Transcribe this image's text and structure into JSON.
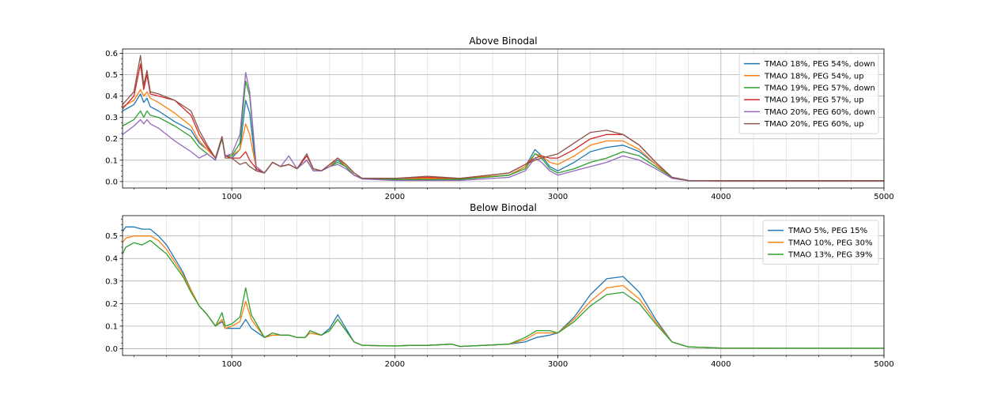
{
  "chart_data": [
    {
      "type": "line",
      "title": "Above Binodal",
      "xlabel": "",
      "ylabel": "",
      "xlim": [
        330,
        5000
      ],
      "ylim": [
        -0.03,
        0.62
      ],
      "xticks": [
        1000,
        2000,
        3000,
        4000,
        5000
      ],
      "yticks": [
        0.0,
        0.1,
        0.2,
        0.3,
        0.4,
        0.5,
        0.6
      ],
      "grid": true,
      "legend": "top-right",
      "series": [
        {
          "name": "TMAO 18%, PEG 54%, down",
          "color": "#1f77b4",
          "x": [
            330,
            400,
            440,
            460,
            480,
            500,
            550,
            650,
            750,
            800,
            850,
            900,
            940,
            960,
            1000,
            1050,
            1085,
            1110,
            1150,
            1200,
            1250,
            1300,
            1350,
            1400,
            1460,
            1500,
            1550,
            1600,
            1650,
            1700,
            1750,
            1800,
            2000,
            2200,
            2400,
            2700,
            2800,
            2860,
            2900,
            2950,
            3000,
            3100,
            3200,
            3300,
            3400,
            3500,
            3600,
            3700,
            3800,
            4000,
            4500,
            5000
          ],
          "y": [
            0.33,
            0.36,
            0.41,
            0.37,
            0.39,
            0.35,
            0.33,
            0.28,
            0.24,
            0.18,
            0.15,
            0.11,
            0.2,
            0.12,
            0.11,
            0.15,
            0.38,
            0.32,
            0.05,
            0.04,
            0.09,
            0.07,
            0.08,
            0.06,
            0.1,
            0.05,
            0.05,
            0.07,
            0.1,
            0.07,
            0.03,
            0.015,
            0.01,
            0.01,
            0.01,
            0.03,
            0.07,
            0.15,
            0.12,
            0.07,
            0.05,
            0.09,
            0.14,
            0.16,
            0.17,
            0.14,
            0.08,
            0.02,
            0.005,
            0.003,
            0.003,
            0.003
          ]
        },
        {
          "name": "TMAO 18%, PEG 54%, up",
          "color": "#ff7f0e",
          "x": [
            330,
            400,
            440,
            460,
            480,
            500,
            550,
            650,
            750,
            800,
            850,
            900,
            940,
            960,
            1000,
            1050,
            1085,
            1110,
            1150,
            1200,
            1250,
            1300,
            1350,
            1400,
            1460,
            1500,
            1550,
            1600,
            1650,
            1700,
            1750,
            1800,
            2000,
            2200,
            2400,
            2700,
            2800,
            2860,
            2900,
            2950,
            3000,
            3100,
            3200,
            3300,
            3400,
            3500,
            3600,
            3700,
            3800,
            4000,
            4500,
            5000
          ],
          "y": [
            0.35,
            0.38,
            0.43,
            0.4,
            0.42,
            0.39,
            0.37,
            0.32,
            0.26,
            0.19,
            0.15,
            0.11,
            0.2,
            0.12,
            0.12,
            0.15,
            0.27,
            0.22,
            0.06,
            0.04,
            0.09,
            0.07,
            0.08,
            0.06,
            0.1,
            0.05,
            0.05,
            0.07,
            0.11,
            0.07,
            0.03,
            0.015,
            0.01,
            0.015,
            0.015,
            0.03,
            0.07,
            0.13,
            0.12,
            0.09,
            0.08,
            0.12,
            0.17,
            0.19,
            0.19,
            0.15,
            0.08,
            0.02,
            0.005,
            0.003,
            0.003,
            0.003
          ]
        },
        {
          "name": "TMAO 19%, PEG 57%, down",
          "color": "#2ca02c",
          "x": [
            330,
            400,
            440,
            460,
            480,
            500,
            550,
            650,
            750,
            800,
            850,
            900,
            940,
            960,
            1000,
            1050,
            1085,
            1110,
            1150,
            1200,
            1250,
            1300,
            1350,
            1400,
            1460,
            1500,
            1550,
            1600,
            1650,
            1700,
            1750,
            1800,
            2000,
            2200,
            2400,
            2700,
            2800,
            2860,
            2900,
            2950,
            3000,
            3100,
            3200,
            3300,
            3400,
            3500,
            3600,
            3700,
            3800,
            4000,
            4500,
            5000
          ],
          "y": [
            0.26,
            0.29,
            0.33,
            0.3,
            0.33,
            0.31,
            0.3,
            0.26,
            0.21,
            0.16,
            0.13,
            0.1,
            0.2,
            0.12,
            0.12,
            0.18,
            0.47,
            0.4,
            0.06,
            0.04,
            0.09,
            0.07,
            0.08,
            0.06,
            0.1,
            0.05,
            0.05,
            0.07,
            0.09,
            0.07,
            0.03,
            0.015,
            0.01,
            0.01,
            0.01,
            0.03,
            0.06,
            0.13,
            0.11,
            0.06,
            0.04,
            0.06,
            0.09,
            0.11,
            0.14,
            0.12,
            0.07,
            0.02,
            0.005,
            0.003,
            0.003,
            0.003
          ]
        },
        {
          "name": "TMAO 19%, PEG 57%, up",
          "color": "#d62728",
          "x": [
            330,
            400,
            440,
            460,
            480,
            500,
            550,
            650,
            750,
            800,
            850,
            900,
            940,
            960,
            1000,
            1050,
            1085,
            1110,
            1150,
            1200,
            1250,
            1300,
            1350,
            1400,
            1460,
            1500,
            1550,
            1600,
            1650,
            1700,
            1750,
            1800,
            2000,
            2200,
            2400,
            2700,
            2800,
            2860,
            2900,
            2950,
            3000,
            3100,
            3200,
            3300,
            3400,
            3500,
            3600,
            3700,
            3800,
            4000,
            4500,
            5000
          ],
          "y": [
            0.34,
            0.4,
            0.55,
            0.43,
            0.5,
            0.41,
            0.4,
            0.38,
            0.31,
            0.22,
            0.16,
            0.11,
            0.21,
            0.12,
            0.11,
            0.11,
            0.14,
            0.1,
            0.06,
            0.04,
            0.09,
            0.07,
            0.08,
            0.06,
            0.12,
            0.06,
            0.05,
            0.08,
            0.11,
            0.08,
            0.04,
            0.015,
            0.015,
            0.02,
            0.015,
            0.04,
            0.08,
            0.11,
            0.12,
            0.11,
            0.11,
            0.15,
            0.2,
            0.22,
            0.22,
            0.17,
            0.09,
            0.02,
            0.005,
            0.004,
            0.004,
            0.004
          ]
        },
        {
          "name": "TMAO 20%, PEG 60%, down",
          "color": "#9467bd",
          "x": [
            330,
            400,
            440,
            460,
            480,
            500,
            550,
            650,
            750,
            800,
            850,
            900,
            940,
            960,
            1000,
            1050,
            1085,
            1110,
            1150,
            1200,
            1250,
            1300,
            1350,
            1400,
            1460,
            1500,
            1550,
            1600,
            1650,
            1700,
            1750,
            1800,
            2000,
            2200,
            2400,
            2700,
            2800,
            2860,
            2900,
            2950,
            3000,
            3100,
            3200,
            3300,
            3400,
            3500,
            3600,
            3700,
            3800,
            4000,
            4500,
            5000
          ],
          "y": [
            0.22,
            0.26,
            0.29,
            0.27,
            0.29,
            0.27,
            0.25,
            0.19,
            0.14,
            0.11,
            0.13,
            0.1,
            0.21,
            0.12,
            0.13,
            0.22,
            0.51,
            0.42,
            0.07,
            0.04,
            0.09,
            0.07,
            0.12,
            0.06,
            0.1,
            0.05,
            0.05,
            0.07,
            0.08,
            0.06,
            0.03,
            0.012,
            0.005,
            0.005,
            0.005,
            0.02,
            0.05,
            0.11,
            0.09,
            0.05,
            0.03,
            0.05,
            0.07,
            0.09,
            0.12,
            0.1,
            0.06,
            0.015,
            0.004,
            0.003,
            0.003,
            0.003
          ]
        },
        {
          "name": "TMAO 20%, PEG 60%, up",
          "color": "#8c564b",
          "x": [
            330,
            400,
            440,
            460,
            480,
            500,
            550,
            650,
            750,
            800,
            850,
            900,
            940,
            960,
            1000,
            1050,
            1085,
            1110,
            1150,
            1200,
            1250,
            1300,
            1350,
            1400,
            1460,
            1500,
            1550,
            1600,
            1650,
            1700,
            1750,
            1800,
            2000,
            2200,
            2400,
            2700,
            2800,
            2860,
            2900,
            2950,
            3000,
            3100,
            3200,
            3300,
            3400,
            3500,
            3600,
            3700,
            3800,
            4000,
            4500,
            5000
          ],
          "y": [
            0.36,
            0.42,
            0.59,
            0.45,
            0.52,
            0.42,
            0.41,
            0.38,
            0.33,
            0.24,
            0.17,
            0.11,
            0.21,
            0.11,
            0.11,
            0.08,
            0.09,
            0.07,
            0.05,
            0.04,
            0.09,
            0.07,
            0.08,
            0.06,
            0.13,
            0.06,
            0.05,
            0.08,
            0.11,
            0.08,
            0.04,
            0.015,
            0.015,
            0.025,
            0.015,
            0.04,
            0.08,
            0.1,
            0.11,
            0.12,
            0.13,
            0.18,
            0.23,
            0.24,
            0.22,
            0.17,
            0.09,
            0.02,
            0.005,
            0.004,
            0.004,
            0.004
          ]
        }
      ]
    },
    {
      "type": "line",
      "title": "Below Binodal",
      "xlabel": "",
      "ylabel": "",
      "xlim": [
        330,
        5000
      ],
      "ylim": [
        -0.03,
        0.59
      ],
      "xticks": [
        1000,
        2000,
        3000,
        4000,
        5000
      ],
      "yticks": [
        0.0,
        0.1,
        0.2,
        0.3,
        0.4,
        0.5
      ],
      "grid": true,
      "legend": "top-right",
      "series": [
        {
          "name": "TMAO 5%, PEG 15%",
          "color": "#1f77b4",
          "x": [
            330,
            350,
            400,
            450,
            500,
            550,
            600,
            700,
            750,
            800,
            850,
            900,
            940,
            960,
            1000,
            1050,
            1085,
            1120,
            1200,
            1250,
            1300,
            1350,
            1400,
            1450,
            1480,
            1550,
            1600,
            1650,
            1700,
            1750,
            1800,
            2000,
            2100,
            2200,
            2350,
            2400,
            2700,
            2800,
            2870,
            2950,
            3000,
            3100,
            3200,
            3300,
            3400,
            3500,
            3600,
            3700,
            3800,
            4000,
            4500,
            5000
          ],
          "y": [
            0.52,
            0.54,
            0.54,
            0.53,
            0.53,
            0.5,
            0.46,
            0.34,
            0.26,
            0.19,
            0.15,
            0.1,
            0.12,
            0.09,
            0.09,
            0.09,
            0.13,
            0.09,
            0.05,
            0.06,
            0.06,
            0.06,
            0.05,
            0.05,
            0.07,
            0.06,
            0.09,
            0.15,
            0.09,
            0.03,
            0.015,
            0.012,
            0.015,
            0.015,
            0.02,
            0.01,
            0.02,
            0.03,
            0.05,
            0.06,
            0.07,
            0.14,
            0.24,
            0.31,
            0.32,
            0.25,
            0.13,
            0.03,
            0.008,
            0.003,
            0.002,
            0.002
          ]
        },
        {
          "name": "TMAO 10%, PEG 30%",
          "color": "#ff7f0e",
          "x": [
            330,
            350,
            400,
            450,
            500,
            550,
            600,
            700,
            750,
            800,
            850,
            900,
            940,
            960,
            1000,
            1050,
            1085,
            1120,
            1200,
            1250,
            1300,
            1350,
            1400,
            1450,
            1480,
            1550,
            1600,
            1650,
            1700,
            1750,
            1800,
            2000,
            2100,
            2200,
            2350,
            2400,
            2700,
            2800,
            2870,
            2950,
            3000,
            3100,
            3200,
            3300,
            3400,
            3500,
            3600,
            3700,
            3800,
            4000,
            4500,
            5000
          ],
          "y": [
            0.47,
            0.49,
            0.5,
            0.5,
            0.5,
            0.48,
            0.44,
            0.33,
            0.26,
            0.19,
            0.15,
            0.1,
            0.13,
            0.09,
            0.1,
            0.12,
            0.21,
            0.13,
            0.05,
            0.06,
            0.06,
            0.06,
            0.05,
            0.05,
            0.07,
            0.06,
            0.08,
            0.13,
            0.08,
            0.03,
            0.015,
            0.012,
            0.015,
            0.015,
            0.02,
            0.01,
            0.02,
            0.04,
            0.07,
            0.07,
            0.07,
            0.13,
            0.21,
            0.27,
            0.28,
            0.22,
            0.12,
            0.03,
            0.008,
            0.003,
            0.002,
            0.002
          ]
        },
        {
          "name": "TMAO 13%, PEG 39%",
          "color": "#2ca02c",
          "x": [
            330,
            350,
            400,
            450,
            500,
            550,
            600,
            700,
            750,
            800,
            850,
            900,
            940,
            960,
            1000,
            1050,
            1085,
            1120,
            1200,
            1250,
            1300,
            1350,
            1400,
            1450,
            1480,
            1550,
            1600,
            1650,
            1700,
            1750,
            1800,
            2000,
            2100,
            2200,
            2350,
            2400,
            2700,
            2800,
            2870,
            2950,
            3000,
            3100,
            3200,
            3300,
            3400,
            3500,
            3600,
            3700,
            3800,
            4000,
            4500,
            5000
          ],
          "y": [
            0.42,
            0.45,
            0.47,
            0.46,
            0.48,
            0.45,
            0.42,
            0.32,
            0.25,
            0.19,
            0.15,
            0.1,
            0.16,
            0.1,
            0.11,
            0.14,
            0.27,
            0.15,
            0.05,
            0.07,
            0.06,
            0.06,
            0.05,
            0.05,
            0.08,
            0.06,
            0.08,
            0.13,
            0.08,
            0.03,
            0.015,
            0.012,
            0.015,
            0.015,
            0.02,
            0.01,
            0.02,
            0.05,
            0.08,
            0.08,
            0.07,
            0.12,
            0.19,
            0.24,
            0.25,
            0.2,
            0.11,
            0.03,
            0.008,
            0.003,
            0.002,
            0.002
          ]
        }
      ]
    }
  ]
}
